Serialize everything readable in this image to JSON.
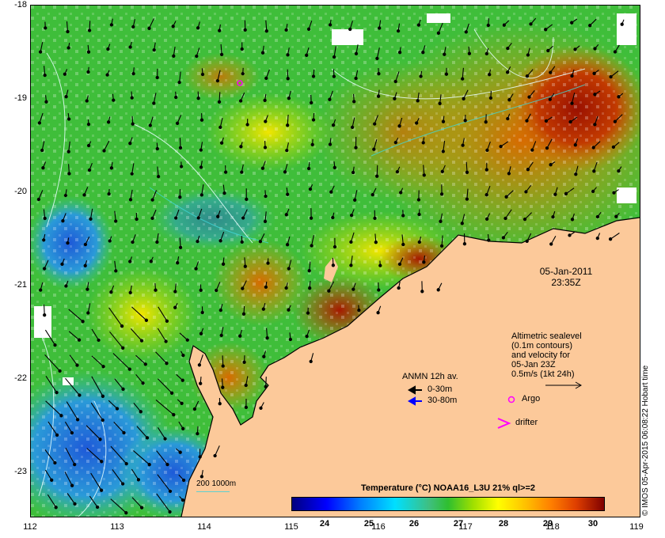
{
  "axes": {
    "x_ticks": [
      "112",
      "113",
      "114",
      "115",
      "116",
      "117",
      "118",
      "119"
    ],
    "y_ticks": [
      "-18",
      "-19",
      "-20",
      "-21",
      "-22",
      "-23"
    ]
  },
  "datetime": {
    "date": "05-Jan-2011",
    "time": "23:35Z"
  },
  "sealevel_note": {
    "lines": [
      "Altimetric sealevel",
      "(0.1m contours)",
      "and velocity for",
      "05-Jan 23Z",
      "0.5m/s (1kt 24h)"
    ]
  },
  "anmn": {
    "title": "ANMN 12h av.",
    "items": [
      {
        "label": "0-30m",
        "color": "#000000"
      },
      {
        "label": "30-80m",
        "color": "#0000ff"
      }
    ]
  },
  "markers": {
    "argo": "Argo",
    "drifter": "drifter",
    "argo_color": "#ff00ff"
  },
  "colorbar": {
    "title": "Temperature (°C) NOAA16_L3U 21% ql>=2",
    "ticks": [
      "24",
      "25",
      "26",
      "27",
      "28",
      "29",
      "30"
    ],
    "vmin": 23.2,
    "vmax": 30.2
  },
  "scale_bar": {
    "label": "200  1000m"
  },
  "credit": "© IMOS 05-Apr-2015 06:08:22 Hobart time",
  "colors": {
    "land": "#fcc99a",
    "water_missing": "#ffffff"
  }
}
